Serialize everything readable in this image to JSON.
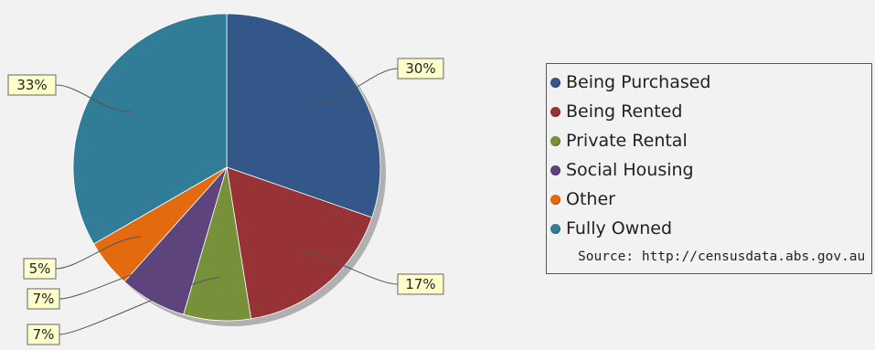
{
  "chart_data": {
    "type": "pie",
    "slices": [
      {
        "label": "Being Purchased",
        "value": 30,
        "value_label": "30%",
        "color": "#34578a"
      },
      {
        "label": "Being Rented",
        "value": 17,
        "value_label": "17%",
        "color": "#973236"
      },
      {
        "label": "Private Rental",
        "value": 7,
        "value_label": "7%",
        "color": "#76913a"
      },
      {
        "label": "Social Housing",
        "value": 7,
        "value_label": "7%",
        "color": "#5d447c"
      },
      {
        "label": "Other",
        "value": 5,
        "value_label": "5%",
        "color": "#e46a10"
      },
      {
        "label": "Fully Owned",
        "value": 33,
        "value_label": "33%",
        "color": "#317c96"
      }
    ],
    "legend_position": "right",
    "start_angle": "top",
    "direction": "clockwise"
  },
  "legend": {
    "items": [
      {
        "label": "Being Purchased",
        "color": "#34578a"
      },
      {
        "label": "Being Rented",
        "color": "#973236"
      },
      {
        "label": "Private Rental",
        "color": "#76913a"
      },
      {
        "label": "Social Housing",
        "color": "#5d447c"
      },
      {
        "label": "Other",
        "color": "#e46a10"
      },
      {
        "label": "Fully Owned",
        "color": "#317c96"
      }
    ],
    "source": "Source: http://censusdata.abs.gov.au"
  }
}
